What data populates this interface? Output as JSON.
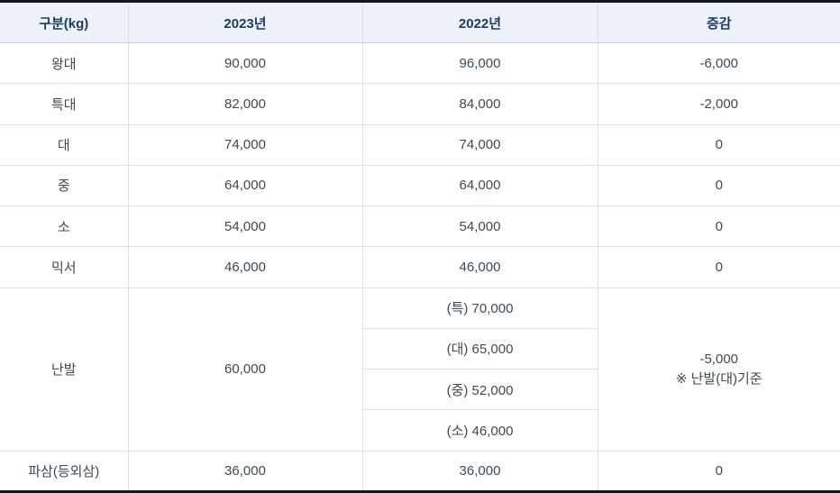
{
  "colors": {
    "header_background": "#edf2f8",
    "header_text": "#1c3c62",
    "body_text": "#3e4a55",
    "grid_line": "#dde1e5",
    "outer_border": "#14161c"
  },
  "table": {
    "columns": [
      "구분(kg)",
      "2023년",
      "2022년",
      "증감"
    ],
    "rows": [
      {
        "label": "왕대",
        "y2023": "90,000",
        "y2022": "96,000",
        "change": "-6,000"
      },
      {
        "label": "특대",
        "y2023": "82,000",
        "y2022": "84,000",
        "change": "-2,000"
      },
      {
        "label": "대",
        "y2023": "74,000",
        "y2022": "74,000",
        "change": "0"
      },
      {
        "label": "중",
        "y2023": "64,000",
        "y2022": "64,000",
        "change": "0"
      },
      {
        "label": "소",
        "y2023": "54,000",
        "y2022": "54,000",
        "change": "0"
      },
      {
        "label": "믹서",
        "y2023": "46,000",
        "y2022": "46,000",
        "change": "0"
      },
      {
        "label": "난발",
        "y2023": "60,000",
        "y2022_sub": [
          "(특) 70,000",
          "(대) 65,000",
          "(중) 52,000",
          "(소) 46,000"
        ],
        "change": "-5,000",
        "change_note": "※ 난발(대)기준"
      },
      {
        "label": "파삼(등외삼)",
        "y2023": "36,000",
        "y2022": "36,000",
        "change": "0"
      }
    ]
  },
  "chart_data": {
    "type": "table",
    "title": "",
    "columns": [
      "구분(kg)",
      "2023년",
      "2022년",
      "증감"
    ],
    "rows": [
      [
        "왕대",
        "90,000",
        "96,000",
        "-6,000"
      ],
      [
        "특대",
        "82,000",
        "84,000",
        "-2,000"
      ],
      [
        "대",
        "74,000",
        "74,000",
        "0"
      ],
      [
        "중",
        "64,000",
        "64,000",
        "0"
      ],
      [
        "소",
        "54,000",
        "54,000",
        "0"
      ],
      [
        "믹서",
        "46,000",
        "46,000",
        "0"
      ],
      [
        "난발",
        "60,000",
        "(특) 70,000 | (대) 65,000 | (중) 52,000 | (소) 46,000",
        "-5,000 ※ 난발(대)기준"
      ],
      [
        "파삼(등외삼)",
        "36,000",
        "36,000",
        "0"
      ]
    ]
  }
}
